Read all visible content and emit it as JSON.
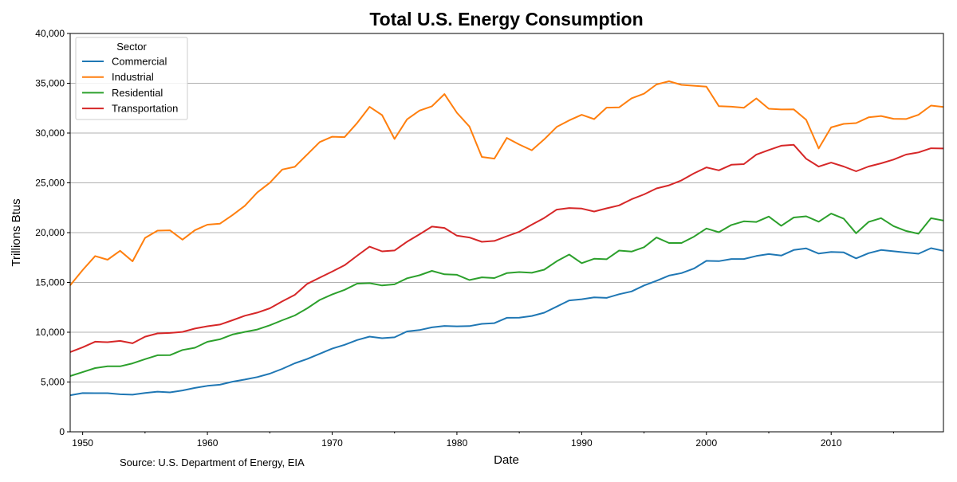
{
  "chart_data": {
    "type": "line",
    "title": "Total U.S. Energy Consumption",
    "xlabel": "Date",
    "ylabel": "Trillions Btus",
    "source": "Source: U.S. Department of Energy, EIA",
    "xlim": [
      1949,
      2019
    ],
    "ylim": [
      0,
      40000
    ],
    "xticks": [
      1950,
      1960,
      1970,
      1980,
      1990,
      2000,
      2010
    ],
    "xtick_labels": [
      "1950",
      "1960",
      "1970",
      "1980",
      "1990",
      "2000",
      "2010"
    ],
    "yticks": [
      0,
      5000,
      10000,
      15000,
      20000,
      25000,
      30000,
      35000,
      40000
    ],
    "ytick_labels": [
      "0",
      "5,000",
      "10,000",
      "15,000",
      "20,000",
      "25,000",
      "30,000",
      "35,000",
      "40,000"
    ],
    "grid": "horizontal",
    "legend": {
      "title": "Sector",
      "placement": "top-left"
    },
    "x": [
      1949,
      1950,
      1951,
      1952,
      1953,
      1954,
      1955,
      1956,
      1957,
      1958,
      1959,
      1960,
      1961,
      1962,
      1963,
      1964,
      1965,
      1966,
      1967,
      1968,
      1969,
      1970,
      1971,
      1972,
      1973,
      1974,
      1975,
      1976,
      1977,
      1978,
      1979,
      1980,
      1981,
      1982,
      1983,
      1984,
      1985,
      1986,
      1987,
      1988,
      1989,
      1990,
      1991,
      1992,
      1993,
      1994,
      1995,
      1996,
      1997,
      1998,
      1999,
      2000,
      2001,
      2002,
      2003,
      2004,
      2005,
      2006,
      2007,
      2008,
      2009,
      2010,
      2011,
      2012,
      2013,
      2014,
      2015,
      2016,
      2017,
      2018,
      2019
    ],
    "series": [
      {
        "name": "Commercial",
        "color": "#1f77b4",
        "values": [
          3670,
          3890,
          3880,
          3880,
          3770,
          3730,
          3900,
          4030,
          3960,
          4150,
          4410,
          4620,
          4730,
          5030,
          5250,
          5500,
          5840,
          6320,
          6880,
          7310,
          7830,
          8350,
          8740,
          9220,
          9560,
          9400,
          9490,
          10080,
          10220,
          10490,
          10630,
          10590,
          10620,
          10840,
          10910,
          11450,
          11460,
          11630,
          11960,
          12580,
          13190,
          13310,
          13500,
          13450,
          13820,
          14100,
          14700,
          15170,
          15690,
          15940,
          16390,
          17170,
          17140,
          17350,
          17350,
          17660,
          17850,
          17700,
          18260,
          18420,
          17900,
          18060,
          18020,
          17420,
          17940,
          18260,
          18130,
          18000,
          17880,
          18440,
          18180
        ]
      },
      {
        "name": "Industrial",
        "color": "#ff7f0e",
        "values": [
          14710,
          16240,
          17650,
          17280,
          18180,
          17120,
          19470,
          20200,
          20230,
          19300,
          20250,
          20800,
          20900,
          21750,
          22700,
          24030,
          25010,
          26340,
          26610,
          27850,
          29100,
          29630,
          29590,
          31010,
          32630,
          31800,
          29410,
          31380,
          32260,
          32690,
          33910,
          32040,
          30660,
          27600,
          27430,
          29510,
          28850,
          28270,
          29370,
          30620,
          31270,
          31830,
          31400,
          32550,
          32580,
          33490,
          33950,
          34880,
          35200,
          34840,
          34750,
          34660,
          32700,
          32650,
          32540,
          33480,
          32440,
          32370,
          32380,
          31330,
          28460,
          30570,
          30920,
          31000,
          31580,
          31710,
          31430,
          31410,
          31830,
          32760,
          32620
        ]
      },
      {
        "name": "Residential",
        "color": "#2ca02c",
        "values": [
          5600,
          5990,
          6400,
          6580,
          6580,
          6870,
          7300,
          7690,
          7700,
          8220,
          8440,
          9040,
          9290,
          9770,
          10030,
          10270,
          10700,
          11200,
          11680,
          12400,
          13240,
          13790,
          14260,
          14880,
          14930,
          14700,
          14810,
          15420,
          15720,
          16160,
          15820,
          15770,
          15240,
          15510,
          15440,
          15940,
          16040,
          15970,
          16280,
          17130,
          17800,
          16940,
          17380,
          17330,
          18200,
          18100,
          18540,
          19510,
          18960,
          18960,
          19590,
          20420,
          20040,
          20770,
          21140,
          21070,
          21620,
          20690,
          21520,
          21640,
          21100,
          21910,
          21410,
          19940,
          21070,
          21460,
          20660,
          20170,
          19890,
          21450,
          21220
        ]
      },
      {
        "name": "Transportation",
        "color": "#d62728",
        "values": [
          8010,
          8490,
          9050,
          9000,
          9130,
          8890,
          9550,
          9880,
          9930,
          10030,
          10370,
          10600,
          10770,
          11200,
          11660,
          11970,
          12400,
          13100,
          13750,
          14860,
          15480,
          16090,
          16730,
          17680,
          18590,
          18120,
          18210,
          19090,
          19830,
          20610,
          20470,
          19700,
          19510,
          19080,
          19170,
          19640,
          20090,
          20800,
          21470,
          22310,
          22470,
          22420,
          22120,
          22440,
          22740,
          23350,
          23840,
          24440,
          24750,
          25250,
          25950,
          26550,
          26260,
          26820,
          26880,
          27830,
          28300,
          28730,
          28820,
          27420,
          26630,
          27030,
          26640,
          26160,
          26640,
          26960,
          27340,
          27840,
          28060,
          28470,
          28450
        ]
      }
    ]
  }
}
